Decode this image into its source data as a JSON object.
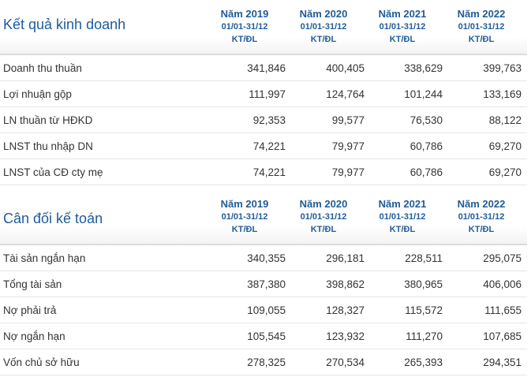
{
  "income": {
    "title": "Kết quả kinh doanh",
    "columns": [
      {
        "year": "Năm 2019",
        "period": "01/01-31/12",
        "type": "KT/ĐL"
      },
      {
        "year": "Năm 2020",
        "period": "01/01-31/12",
        "type": "KT/ĐL"
      },
      {
        "year": "Năm 2021",
        "period": "01/01-31/12",
        "type": "KT/ĐL"
      },
      {
        "year": "Năm 2022",
        "period": "01/01-31/12",
        "type": "KT/ĐL"
      }
    ],
    "rows": [
      {
        "label": "Doanh thu thuần",
        "values": [
          "341,846",
          "400,405",
          "338,629",
          "399,763"
        ]
      },
      {
        "label": "Lợi nhuận gộp",
        "values": [
          "111,997",
          "124,764",
          "101,244",
          "133,169"
        ]
      },
      {
        "label": "LN thuần từ HĐKD",
        "values": [
          "92,353",
          "99,577",
          "76,530",
          "88,122"
        ]
      },
      {
        "label": "LNST thu nhập DN",
        "values": [
          "74,221",
          "79,977",
          "60,786",
          "69,270"
        ]
      },
      {
        "label": "LNST của CĐ cty mẹ",
        "values": [
          "74,221",
          "79,977",
          "60,786",
          "69,270"
        ]
      }
    ]
  },
  "balance": {
    "title": "Cân đối kế toán",
    "columns": [
      {
        "year": "Năm 2019",
        "period": "01/01-31/12",
        "type": "KT/ĐL"
      },
      {
        "year": "Năm 2020",
        "period": "01/01-31/12",
        "type": "KT/ĐL"
      },
      {
        "year": "Năm 2021",
        "period": "01/01-31/12",
        "type": "KT/ĐL"
      },
      {
        "year": "Năm 2022",
        "period": "01/01-31/12",
        "type": "KT/ĐL"
      }
    ],
    "rows": [
      {
        "label": "Tài sản ngắn hạn",
        "values": [
          "340,355",
          "296,181",
          "228,511",
          "295,075"
        ]
      },
      {
        "label": "Tổng tài sản",
        "values": [
          "387,380",
          "398,862",
          "380,965",
          "406,006"
        ]
      },
      {
        "label": "Nợ phải trả",
        "values": [
          "109,055",
          "128,327",
          "115,572",
          "111,655"
        ]
      },
      {
        "label": "Nợ ngắn hạn",
        "values": [
          "105,545",
          "123,932",
          "111,270",
          "107,685"
        ]
      },
      {
        "label": "Vốn chủ sở hữu",
        "values": [
          "278,325",
          "270,534",
          "265,393",
          "294,351"
        ]
      }
    ]
  }
}
